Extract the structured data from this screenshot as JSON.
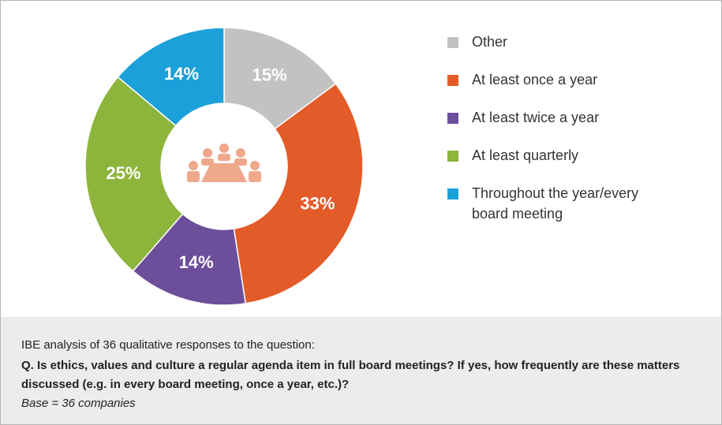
{
  "chart_data": {
    "type": "donut",
    "categories": [
      "Other",
      "At least once a year",
      "At least twice a year",
      "At least quarterly",
      "Throughout the year/every board meeting"
    ],
    "values": [
      15,
      33,
      14,
      25,
      14
    ],
    "value_labels": [
      "15%",
      "33%",
      "14%",
      "25%",
      "14%"
    ],
    "colors": [
      "#c2c2c2",
      "#e35b28",
      "#6c4e9b",
      "#8db53c",
      "#1ba0da"
    ],
    "legend": "right"
  },
  "footer": {
    "note": "IBE analysis of 36 qualitative responses to the question:",
    "question": "Q. Is ethics, values and culture a regular agenda item in full board meetings? If yes, how frequently are these matters discussed (e.g. in every board meeting, once a year, etc.)?",
    "base": "Base = 36 companies"
  }
}
